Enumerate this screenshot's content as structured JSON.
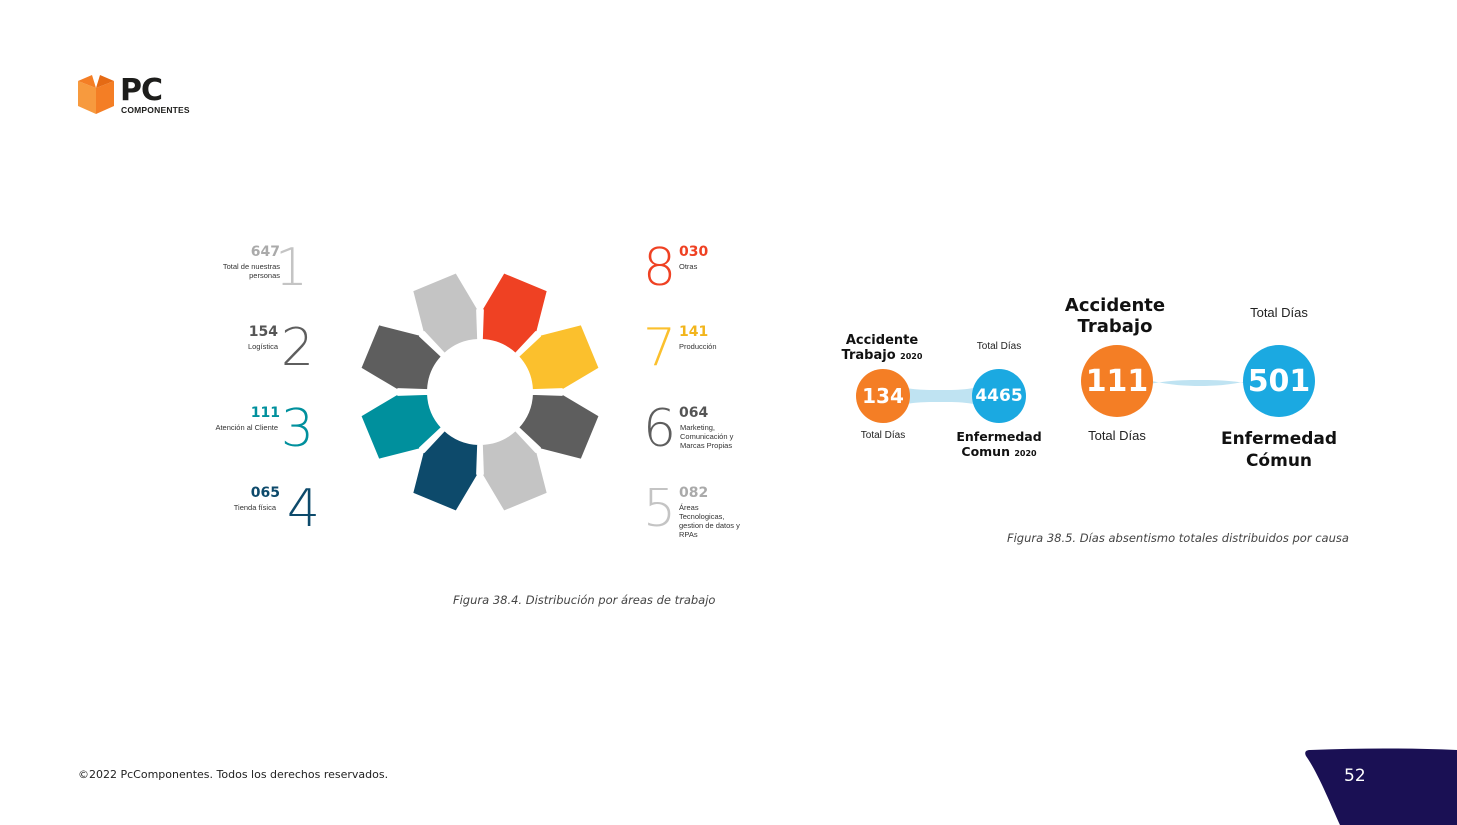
{
  "logo": {
    "brand": "PC",
    "sub": "COMPONENTES"
  },
  "colors": {
    "orange": "#f47e25",
    "blue": "#1ba9e1",
    "red": "#ef4123",
    "yellow": "#fbc02d",
    "darkgrey": "#5e5e5e",
    "lightgrey": "#c8c8c8",
    "teal": "#00909d",
    "navy": "#0d4a6b",
    "page_tab": "#1a1054"
  },
  "figure_areas": {
    "caption": "Figura 38.4. Distribución por áreas de trabajo",
    "items": [
      {
        "number": "1",
        "count": "647",
        "label": "Total de nuestras personas",
        "color": "#c4c4c4"
      },
      {
        "number": "2",
        "count": "154",
        "label": "Logística",
        "color": "#5e5e5e"
      },
      {
        "number": "3",
        "count": "111",
        "label": "Atención al Cliente",
        "color": "#00909d"
      },
      {
        "number": "4",
        "count": "065",
        "label": "Tienda física",
        "color": "#0d4a6b"
      },
      {
        "number": "5",
        "count": "082",
        "label": "Áreas Tecnologicas, gestion de datos y RPAs",
        "color": "#c4c4c4"
      },
      {
        "number": "6",
        "count": "064",
        "label": "Marketing, Comunicación y Marcas Propias",
        "color": "#5e5e5e"
      },
      {
        "number": "7",
        "count": "141",
        "label": "Producción",
        "color": "#fbc02d"
      },
      {
        "number": "8",
        "count": "030",
        "label": "Otras",
        "color": "#ef4123"
      }
    ]
  },
  "figure_absentism": {
    "caption": "Figura 38.5. Días absentismo totales distribuidos por causa",
    "y2020": {
      "accidente_title": "Accidente Trabajo",
      "year": "2020",
      "accidente_value": "134",
      "accidente_sub": "Total Días",
      "enfermedad_top": "Total Días",
      "enfermedad_value": "4465",
      "enfermedad_title": "Enfermedad Comun",
      "enfermedad_year": "2020"
    },
    "current": {
      "accidente_title": "Accidente Trabajo",
      "accidente_value": "111",
      "accidente_sub": "Total Días",
      "enfermedad_top": "Total Días",
      "enfermedad_value": "501",
      "enfermedad_title": "Enfermedad Cómun"
    }
  },
  "footer": {
    "copyright": "©2022 PcComponentes. Todos los derechos reservados."
  },
  "page": {
    "number": "52"
  }
}
